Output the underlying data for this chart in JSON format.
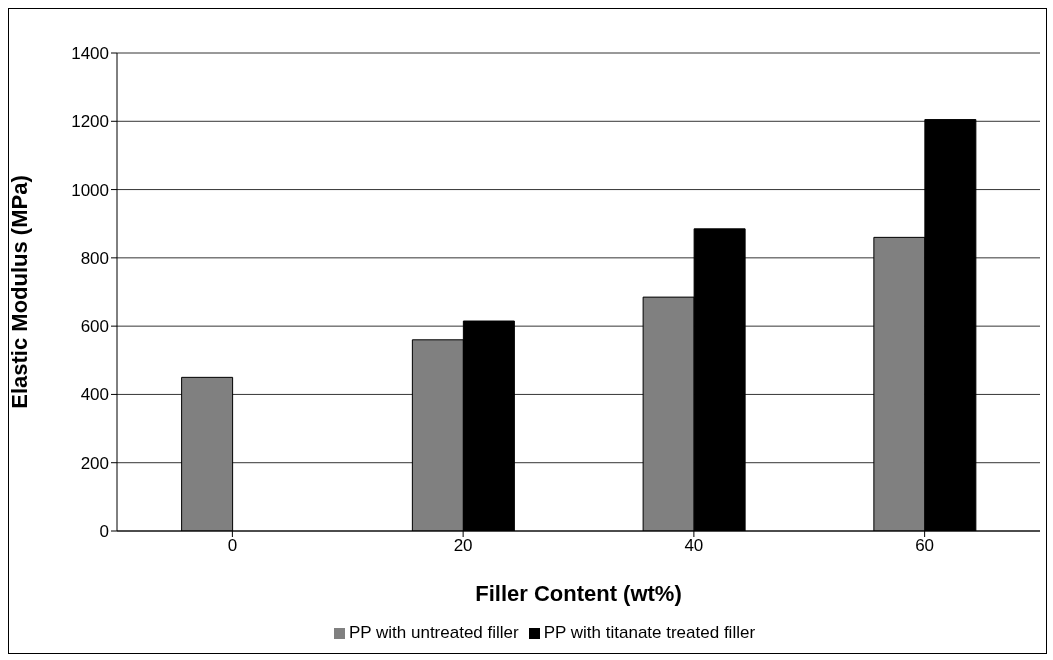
{
  "chart_data": {
    "type": "bar",
    "xlabel": "Filler Content (wt%)",
    "ylabel": "Elastic Modulus (MPa)",
    "categories": [
      "0",
      "20",
      "40",
      "60"
    ],
    "series": [
      {
        "name": "PP with untreated filler",
        "color": "#808080",
        "values": [
          450,
          560,
          685,
          860
        ]
      },
      {
        "name": "PP with titanate treated filler",
        "color": "#000000",
        "values": [
          null,
          615,
          885,
          1205
        ]
      }
    ],
    "ylim": [
      0,
      1400
    ],
    "yticks": [
      0,
      200,
      400,
      600,
      800,
      1000,
      1200,
      1400
    ],
    "grid": "y",
    "legend": "bottom"
  }
}
